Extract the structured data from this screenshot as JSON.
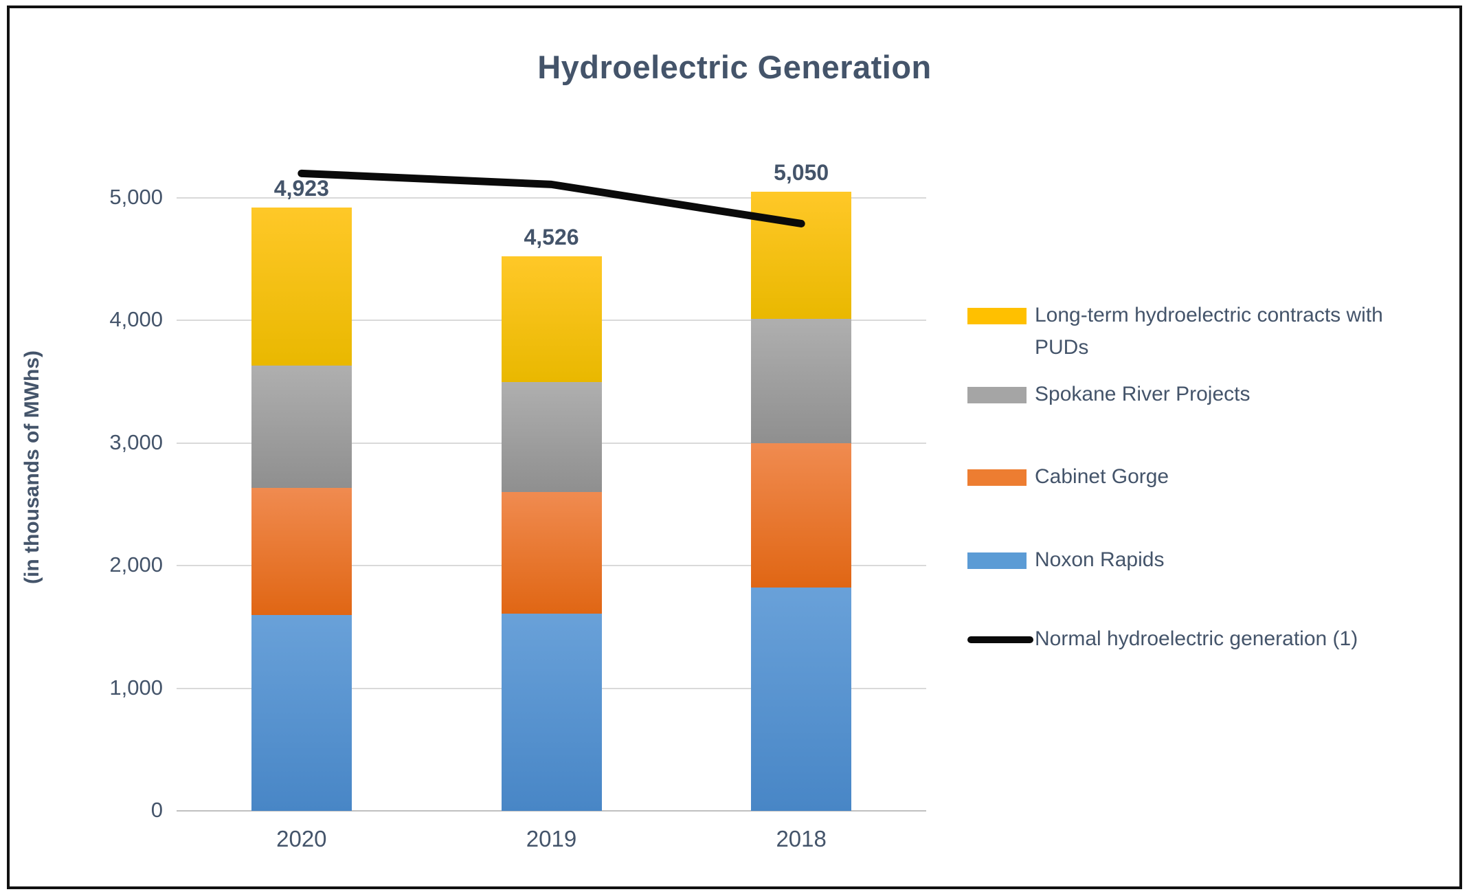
{
  "title": "Hydroelectric Generation",
  "y_axis_title": "(in thousands of MWhs)",
  "text_color": "#44546A",
  "grid_color": "#D9D9D9",
  "axis_color": "#BFBFBF",
  "chart_data": {
    "type": "bar",
    "subtype": "stacked-column-with-line-overlay",
    "title": "Hydroelectric Generation",
    "xlabel": "",
    "ylabel": "(in thousands of MWhs)",
    "categories": [
      "2020",
      "2019",
      "2018"
    ],
    "series": [
      {
        "name": "Noxon Rapids",
        "color": "#5B9BD5",
        "gradient": [
          "#69A1D9",
          "#4886C6"
        ],
        "values": [
          1600,
          1610,
          1820
        ]
      },
      {
        "name": "Cabinet Gorge",
        "color": "#ED7D31",
        "gradient": [
          "#F08B50",
          "#E06614"
        ],
        "values": [
          1035,
          990,
          1180
        ]
      },
      {
        "name": "Spokane River Projects",
        "color": "#A5A5A5",
        "gradient": [
          "#AFAFAF",
          "#8F8F8F"
        ],
        "values": [
          995,
          900,
          1015
        ]
      },
      {
        "name": "Long-term hydroelectric contracts with PUDs",
        "color": "#FFC000",
        "gradient": [
          "#FFC828",
          "#E9B800"
        ],
        "values": [
          1293,
          1026,
          1035
        ]
      }
    ],
    "totals": [
      "4,923",
      "4,526",
      "5,050"
    ],
    "line_series": {
      "name": "Normal hydroelectric generation (1)",
      "color": "#0a0a0a",
      "values": [
        5200,
        5110,
        4790
      ]
    },
    "ylim": [
      0,
      5500
    ],
    "yticks": [
      0,
      1000,
      2000,
      3000,
      4000,
      5000
    ],
    "ytick_labels": [
      "0",
      "1,000",
      "2,000",
      "3,000",
      "4,000",
      "5,000"
    ],
    "grid": true,
    "legend_position": "right"
  },
  "legend": {
    "items": [
      {
        "label": "Long-term hydroelectric contracts with PUDs",
        "swatch": "box",
        "color": "#FFC000"
      },
      {
        "label": "Spokane River Projects",
        "swatch": "box",
        "color": "#A5A5A5"
      },
      {
        "label": "Cabinet Gorge",
        "swatch": "box",
        "color": "#ED7D31"
      },
      {
        "label": "Noxon Rapids",
        "swatch": "box",
        "color": "#5B9BD5"
      },
      {
        "label": "Normal hydroelectric generation (1)",
        "swatch": "line",
        "color": "#0a0a0a"
      }
    ]
  }
}
